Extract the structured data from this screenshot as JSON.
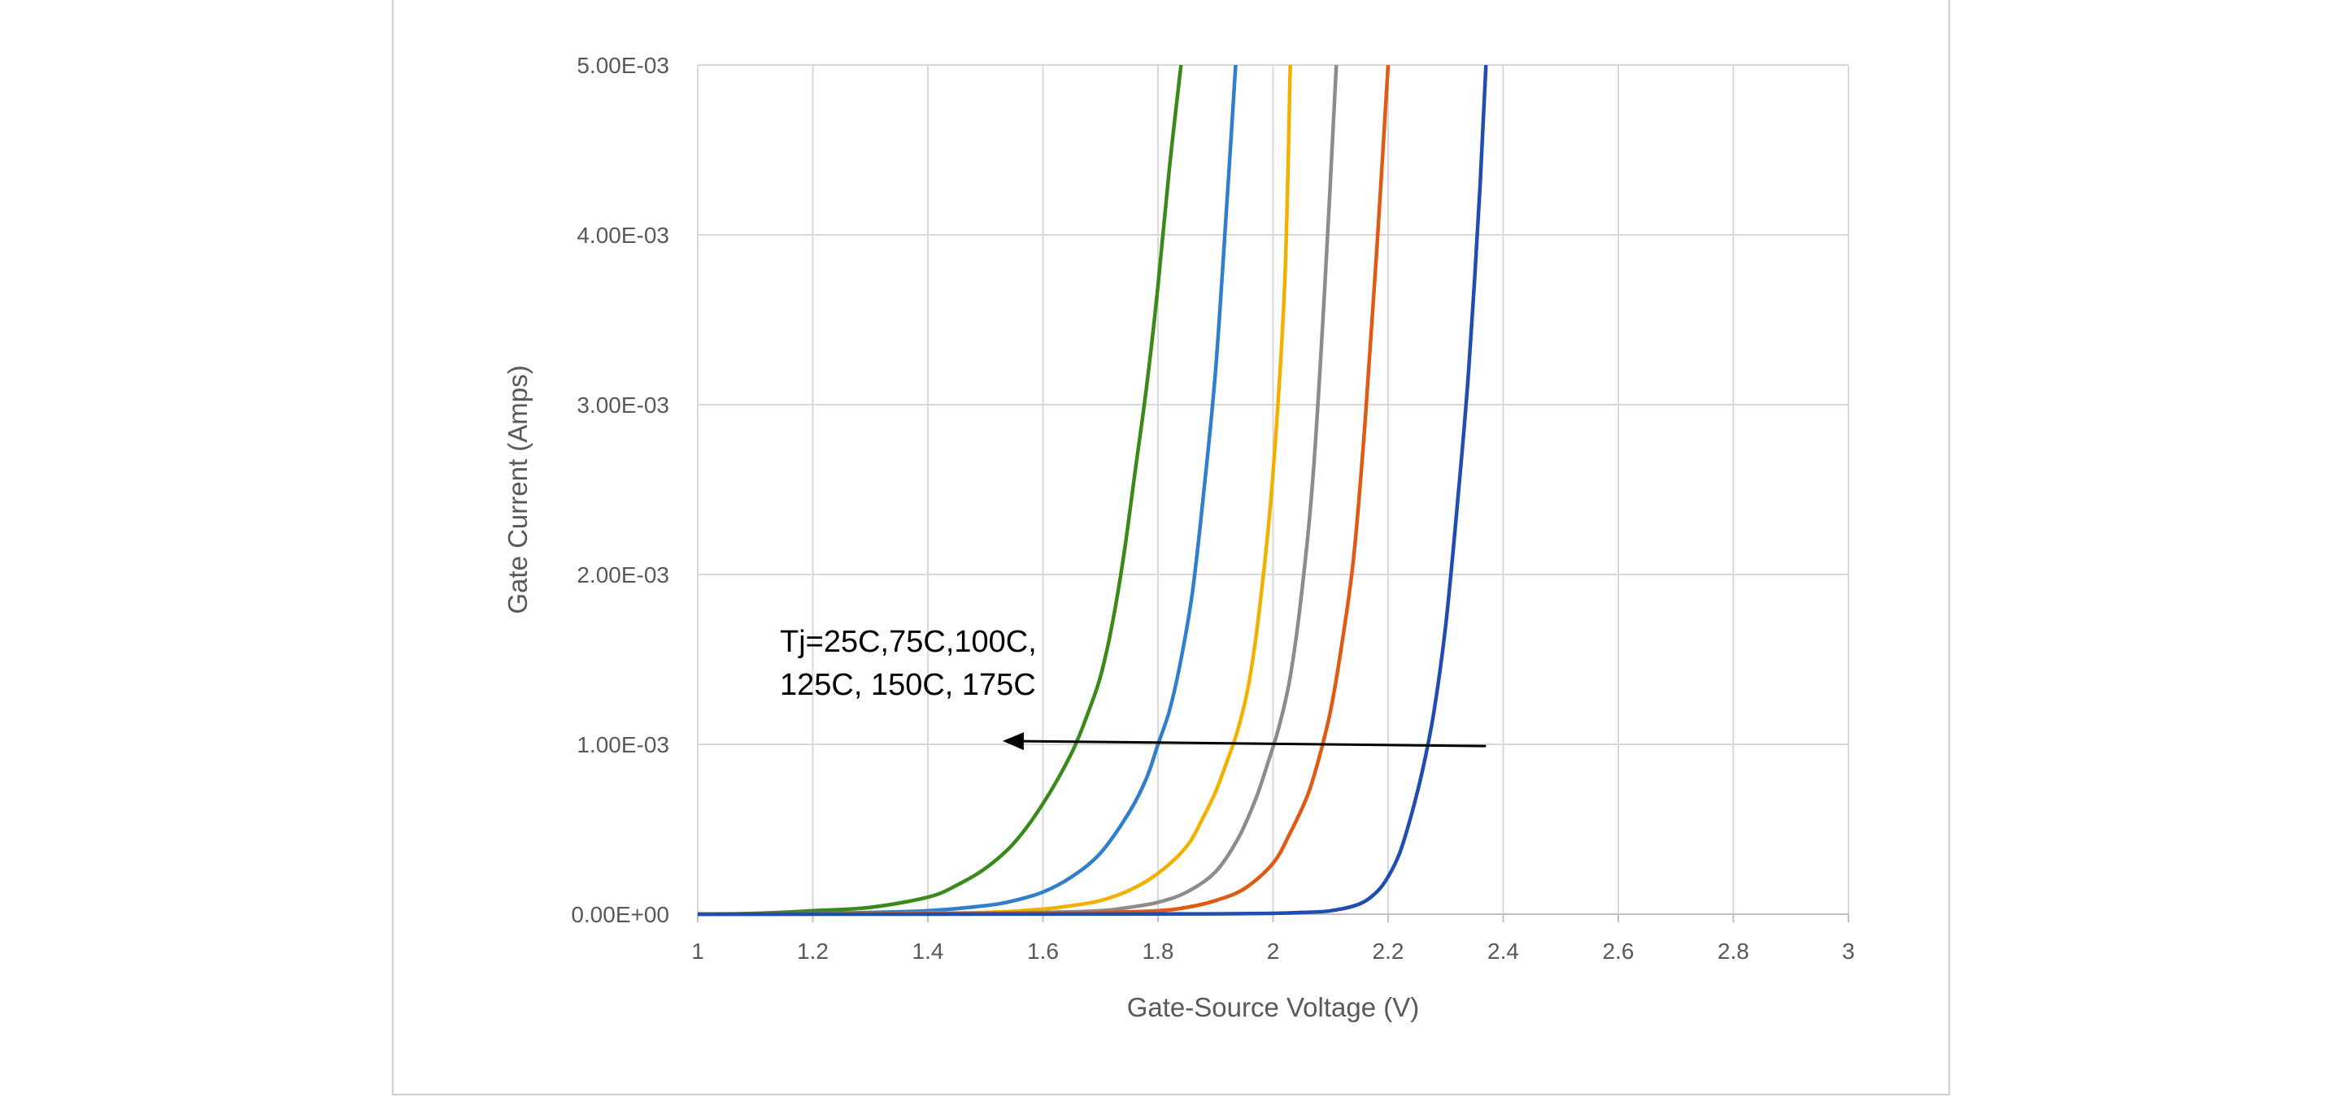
{
  "chart_data": {
    "type": "line",
    "title": "",
    "xlabel": "Gate-Source Voltage (V)",
    "ylabel": "Gate Current (Amps)",
    "xlim": [
      1,
      3
    ],
    "ylim": [
      0,
      0.005
    ],
    "x_ticks": [
      1,
      1.2,
      1.4,
      1.6,
      1.8,
      2,
      2.2,
      2.4,
      2.6,
      2.8,
      3
    ],
    "x_tick_labels": [
      "1",
      "1.2",
      "1.4",
      "1.6",
      "1.8",
      "2",
      "2.2",
      "2.4",
      "2.6",
      "2.8",
      "3"
    ],
    "y_ticks": [
      0,
      0.001,
      0.002,
      0.003,
      0.004,
      0.005
    ],
    "y_tick_labels": [
      "0.00E+00",
      "1.00E-03",
      "2.00E-03",
      "3.00E-03",
      "4.00E-03",
      "5.00E-03"
    ],
    "grid": true,
    "legend": "none",
    "annotation": {
      "lines": [
        "Tj=25C,75C,100C,",
        "125C, 150C, 175C"
      ],
      "arrow_from": [
        2.37,
        0.00099
      ],
      "arrow_to": [
        1.53,
        0.00102
      ]
    },
    "series": [
      {
        "name": "175C",
        "color": "#3a8a1a",
        "x": [
          1.0,
          1.1,
          1.2,
          1.3,
          1.4,
          1.45,
          1.5,
          1.55,
          1.6,
          1.65,
          1.68,
          1.7,
          1.72,
          1.74,
          1.76,
          1.78,
          1.8,
          1.82,
          1.84
        ],
        "y": [
          0.0,
          5e-06,
          2e-05,
          4e-05,
          0.0001,
          0.00017,
          0.00027,
          0.00042,
          0.00065,
          0.00095,
          0.0012,
          0.0014,
          0.0017,
          0.0021,
          0.0026,
          0.0031,
          0.0037,
          0.0044,
          0.005
        ]
      },
      {
        "name": "150C",
        "color": "#2e7fcc",
        "x": [
          1.0,
          1.2,
          1.3,
          1.4,
          1.5,
          1.55,
          1.6,
          1.65,
          1.7,
          1.75,
          1.78,
          1.8,
          1.82,
          1.84,
          1.86,
          1.88,
          1.9,
          1.92,
          1.935
        ],
        "y": [
          0.0,
          3e-06,
          1e-05,
          2e-05,
          5e-05,
          8e-05,
          0.00013,
          0.00022,
          0.00036,
          0.0006,
          0.0008,
          0.001,
          0.0012,
          0.0015,
          0.0019,
          0.0025,
          0.0032,
          0.0042,
          0.005
        ]
      },
      {
        "name": "125C",
        "color": "#f2b100",
        "x": [
          1.0,
          1.3,
          1.5,
          1.6,
          1.65,
          1.7,
          1.75,
          1.8,
          1.85,
          1.88,
          1.9,
          1.92,
          1.94,
          1.96,
          1.98,
          2.0,
          2.02,
          2.03
        ],
        "y": [
          0.0,
          3e-06,
          1e-05,
          3e-05,
          5e-05,
          8e-05,
          0.00014,
          0.00024,
          0.0004,
          0.00058,
          0.00072,
          0.0009,
          0.0011,
          0.0014,
          0.0019,
          0.0026,
          0.0037,
          0.005
        ]
      },
      {
        "name": "100C",
        "color": "#8c8c8c",
        "x": [
          1.0,
          1.4,
          1.6,
          1.7,
          1.75,
          1.8,
          1.85,
          1.9,
          1.94,
          1.97,
          1.99,
          2.01,
          2.03,
          2.05,
          2.07,
          2.09,
          2.11
        ],
        "y": [
          0.0,
          3e-06,
          1e-05,
          2e-05,
          4e-05,
          7e-05,
          0.00013,
          0.00025,
          0.00045,
          0.00068,
          0.00088,
          0.0011,
          0.0014,
          0.0019,
          0.0026,
          0.0037,
          0.005
        ]
      },
      {
        "name": "75C",
        "color": "#e05a14",
        "x": [
          1.0,
          1.5,
          1.7,
          1.8,
          1.85,
          1.9,
          1.95,
          2.0,
          2.03,
          2.06,
          2.08,
          2.1,
          2.12,
          2.14,
          2.16,
          2.18,
          2.2
        ],
        "y": [
          0.0,
          3e-06,
          1e-05,
          2e-05,
          4e-05,
          8e-05,
          0.00015,
          0.0003,
          0.00048,
          0.0007,
          0.00092,
          0.0012,
          0.0016,
          0.0021,
          0.0029,
          0.0039,
          0.005
        ]
      },
      {
        "name": "25C",
        "color": "#1f4eb0",
        "x": [
          1.0,
          1.6,
          1.9,
          2.0,
          2.05,
          2.1,
          2.15,
          2.18,
          2.2,
          2.22,
          2.24,
          2.26,
          2.28,
          2.3,
          2.32,
          2.34,
          2.36,
          2.37
        ],
        "y": [
          0.0,
          5e-07,
          2e-06,
          5e-06,
          1e-05,
          2e-05,
          6e-05,
          0.00013,
          0.00022,
          0.00036,
          0.00058,
          0.00085,
          0.0012,
          0.0017,
          0.0024,
          0.0032,
          0.0043,
          0.005
        ]
      }
    ]
  }
}
